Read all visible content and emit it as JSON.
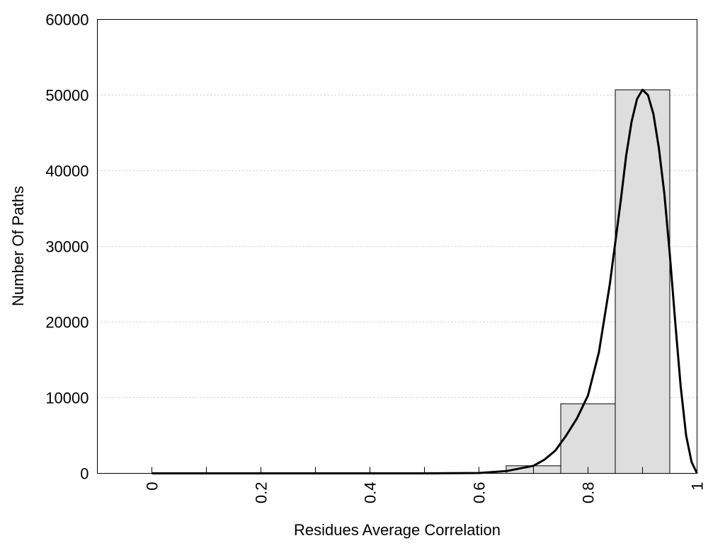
{
  "chart_data": {
    "type": "bar",
    "title": "",
    "xlabel": "Residues Average Correlation",
    "ylabel": "Number Of Paths",
    "xlim": [
      -0.1,
      1.0
    ],
    "ylim": [
      0,
      60000
    ],
    "x_ticks": [
      0,
      0.2,
      0.4,
      0.6,
      0.8,
      1
    ],
    "x_tick_labels": [
      "0",
      "0.2",
      "0.4",
      "0.6",
      "0.8",
      "1"
    ],
    "x_minor_ticks": [
      0.1,
      0.3,
      0.5,
      0.7,
      0.9
    ],
    "y_ticks": [
      0,
      10000,
      20000,
      30000,
      40000,
      50000,
      60000
    ],
    "y_tick_labels": [
      "0",
      "10000",
      "20000",
      "30000",
      "40000",
      "50000",
      "60000"
    ],
    "grid": "horizontal dotted",
    "legend": "none",
    "bar_color": "#dedede",
    "bar_edge_color": "#000000",
    "bin_width": 0.1,
    "categories": [
      "0",
      "0.1",
      "0.2",
      "0.3",
      "0.4",
      "0.5",
      "0.6",
      "0.7",
      "0.8",
      "0.9"
    ],
    "bar_centers": [
      0,
      0.1,
      0.2,
      0.3,
      0.4,
      0.5,
      0.6,
      0.7,
      0.8,
      0.9
    ],
    "values": [
      0,
      0,
      0,
      0,
      0,
      0,
      0,
      1000,
      9200,
      50700
    ],
    "fit_curve": {
      "color": "#000000",
      "x": [
        0,
        0.1,
        0.2,
        0.3,
        0.4,
        0.5,
        0.6,
        0.65,
        0.7,
        0.72,
        0.74,
        0.76,
        0.78,
        0.8,
        0.82,
        0.84,
        0.86,
        0.87,
        0.88,
        0.89,
        0.9,
        0.91,
        0.92,
        0.93,
        0.94,
        0.95,
        0.96,
        0.97,
        0.98,
        0.99,
        1.0
      ],
      "y": [
        0,
        0,
        0,
        0,
        0,
        0,
        50,
        300,
        1000,
        1800,
        3000,
        5000,
        7300,
        10300,
        16000,
        25000,
        36000,
        42000,
        46500,
        49500,
        50700,
        50000,
        47500,
        43000,
        37000,
        29000,
        20000,
        11500,
        5000,
        1500,
        0
      ]
    }
  }
}
